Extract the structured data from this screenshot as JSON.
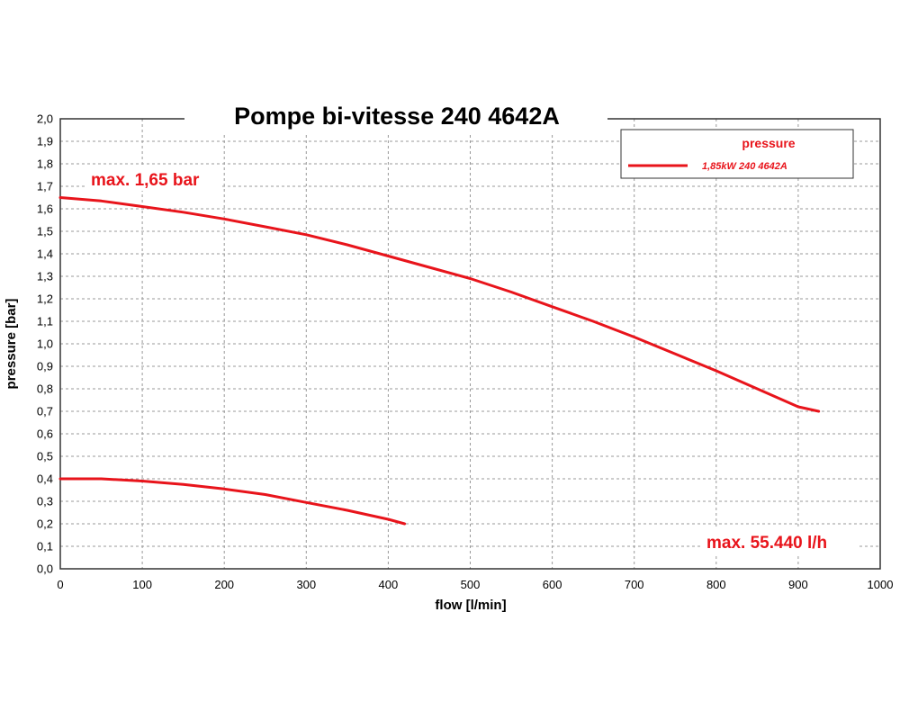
{
  "chart_data": {
    "type": "line",
    "title": "Pompe bi-vitesse 240 4642A",
    "xlabel": "flow [l/min]",
    "ylabel": "pressure [bar]",
    "xlim": [
      0,
      1000
    ],
    "ylim": [
      0,
      2.0
    ],
    "x_ticks": [
      "0",
      "100",
      "200",
      "300",
      "400",
      "500",
      "600",
      "700",
      "800",
      "900",
      "1000"
    ],
    "y_ticks": [
      "0,0",
      "0,1",
      "0,2",
      "0,3",
      "0,4",
      "0,5",
      "0,6",
      "0,7",
      "0,8",
      "0,9",
      "1,0",
      "1,1",
      "1,2",
      "1,3",
      "1,4",
      "1,5",
      "1,6",
      "1,7",
      "1,8",
      "1,9",
      "2,0"
    ],
    "grid": true,
    "legend": {
      "title": "pressure",
      "placement": "top-right",
      "entries": [
        "1,85kW  240 4642A"
      ]
    },
    "series": [
      {
        "color": "#e8141b",
        "x": [
          0,
          50,
          100,
          150,
          200,
          250,
          300,
          350,
          400,
          450,
          500,
          550,
          600,
          650,
          700,
          750,
          800,
          850,
          900,
          925
        ],
        "y": [
          1.65,
          1.635,
          1.61,
          1.585,
          1.555,
          1.52,
          1.485,
          1.44,
          1.39,
          1.34,
          1.29,
          1.23,
          1.165,
          1.1,
          1.03,
          0.955,
          0.88,
          0.8,
          0.72,
          0.7
        ]
      },
      {
        "color": "#e8141b",
        "x": [
          0,
          50,
          100,
          150,
          200,
          250,
          300,
          350,
          400,
          420
        ],
        "y": [
          0.4,
          0.4,
          0.39,
          0.375,
          0.355,
          0.33,
          0.295,
          0.26,
          0.22,
          0.2
        ]
      }
    ],
    "annotations": [
      {
        "text": "max. 1,65 bar",
        "color": "#e8141b"
      },
      {
        "text": "max. 55.440 l/h",
        "color": "#e8141b"
      }
    ]
  }
}
